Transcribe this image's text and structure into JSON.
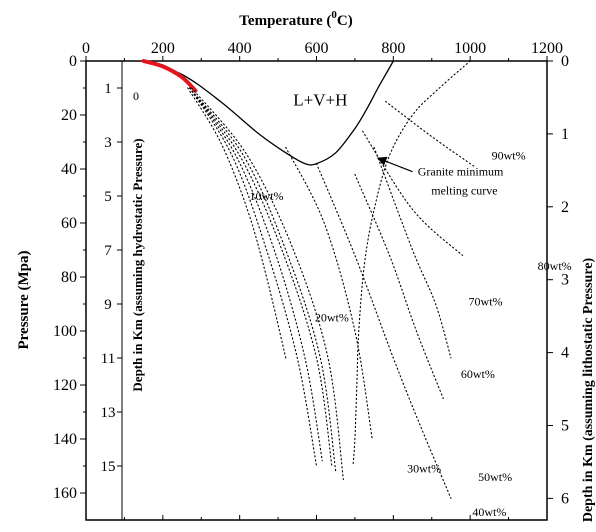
{
  "chart_data": {
    "type": "line",
    "title": "",
    "xlabel": "Temperature (°C)",
    "xlabel_parts": {
      "main": "Temperature (",
      "sup": "0",
      "unit": "C)"
    },
    "ylabel": "Pressure (Mpa)",
    "ylabel_inner": "Depth in Km (assuming hydrostatic Pressure)",
    "ylabel_right": "Depth in Km (assuming lithostatic Pressure)",
    "xlim": [
      0,
      1200
    ],
    "ylim": [
      0,
      170
    ],
    "xticks": [
      0,
      200,
      400,
      600,
      800,
      1000,
      1200
    ],
    "yticks": [
      0,
      20,
      40,
      60,
      80,
      100,
      120,
      140,
      160
    ],
    "hydrostatic_depth_ticks": [
      {
        "label": "1",
        "p": 10
      },
      {
        "label": "3",
        "p": 30
      },
      {
        "label": "5",
        "p": 50
      },
      {
        "label": "7",
        "p": 70
      },
      {
        "label": "9",
        "p": 90
      },
      {
        "label": "11",
        "p": 110
      },
      {
        "label": "13",
        "p": 130
      },
      {
        "label": "15",
        "p": 150
      }
    ],
    "lithostatic_depth_ticks": [
      {
        "label": "0",
        "p": 0
      },
      {
        "label": "1",
        "p": 27
      },
      {
        "label": "2",
        "p": 54
      },
      {
        "label": "3",
        "p": 81
      },
      {
        "label": "4",
        "p": 108
      },
      {
        "label": "5",
        "p": 135
      },
      {
        "label": "6",
        "p": 162
      }
    ],
    "series": [
      {
        "style": "solid",
        "x": [
          150,
          250,
          350,
          450,
          520,
          570,
          600,
          650,
          700,
          730,
          760,
          780,
          800
        ],
        "y": [
          0,
          5,
          15,
          27,
          34,
          38,
          38,
          34,
          25,
          18,
          10,
          5,
          0
        ]
      },
      {
        "style": "red",
        "x": [
          150,
          200,
          250,
          285
        ],
        "y": [
          0,
          2,
          6,
          11
        ]
      },
      {
        "style": "dotted",
        "name": "granite-minimum-melting",
        "x": [
          1000,
          920,
          850,
          790,
          750,
          725,
          710,
          705,
          700,
          695
        ],
        "y": [
          0,
          10,
          20,
          35,
          55,
          75,
          100,
          120,
          140,
          150
        ]
      },
      {
        "style": "dotted",
        "x": [
          265,
          350,
          420,
          470,
          520
        ],
        "y": [
          10,
          30,
          55,
          80,
          110
        ]
      },
      {
        "style": "dotted",
        "x": [
          270,
          380,
          470,
          550,
          600
        ],
        "y": [
          10,
          35,
          70,
          110,
          150
        ]
      },
      {
        "style": "dotted",
        "x": [
          270,
          390,
          490,
          570,
          615
        ],
        "y": [
          10,
          35,
          70,
          110,
          148
        ]
      },
      {
        "style": "dotted",
        "x": [
          270,
          400,
          510,
          600,
          640
        ],
        "y": [
          10,
          35,
          70,
          110,
          150
        ]
      },
      {
        "style": "dotted",
        "x": [
          270,
          410,
          520,
          610,
          650
        ],
        "y": [
          10,
          35,
          70,
          110,
          152
        ]
      },
      {
        "style": "dotted",
        "x": [
          275,
          420,
          540,
          630,
          670
        ],
        "y": [
          10,
          35,
          70,
          110,
          155
        ]
      },
      {
        "style": "dotted",
        "x": [
          520,
          620,
          700,
          745
        ],
        "y": [
          32,
          60,
          100,
          140
        ]
      },
      {
        "style": "dotted",
        "x": [
          600,
          700,
          800,
          870,
          950
        ],
        "y": [
          38,
          72,
          110,
          135,
          162
        ]
      },
      {
        "style": "dotted",
        "x": [
          700,
          790,
          860,
          930
        ],
        "y": [
          42,
          72,
          100,
          125
        ]
      },
      {
        "style": "dotted",
        "x": [
          750,
          850,
          910,
          950
        ],
        "y": [
          32,
          70,
          90,
          110
        ]
      },
      {
        "style": "dotted",
        "x": [
          720,
          850,
          980
        ],
        "y": [
          26,
          55,
          72
        ]
      },
      {
        "style": "dotted",
        "x": [
          780,
          900,
          1010
        ],
        "y": [
          15,
          28,
          39
        ]
      }
    ],
    "annotations": [
      {
        "text": "L+V+H",
        "x": 610,
        "y": 15,
        "cls": "region"
      },
      {
        "text": "0",
        "x": 130,
        "y": 13,
        "cls": "ann"
      },
      {
        "text": "10wt%",
        "x": 470,
        "y": 50,
        "cls": "ann"
      },
      {
        "text": "20wt%",
        "x": 640,
        "y": 95,
        "cls": "ann"
      },
      {
        "text": "30wt%",
        "x": 880,
        "y": 151,
        "cls": "ann"
      },
      {
        "text": "40wt%",
        "x": 1050,
        "y": 167,
        "cls": "ann"
      },
      {
        "text": "50wt%",
        "x": 1065,
        "y": 154,
        "cls": "ann"
      },
      {
        "text": "60wt%",
        "x": 1020,
        "y": 116,
        "cls": "ann"
      },
      {
        "text": "70wt%",
        "x": 1040,
        "y": 89,
        "cls": "ann"
      },
      {
        "text": "80wt%",
        "x": 1220,
        "y": 76,
        "cls": "ann"
      },
      {
        "text": "90wt%",
        "x": 1100,
        "y": 35,
        "cls": "ann"
      },
      {
        "text": "Granite minimum",
        "x": 975,
        "y": 41,
        "cls": "ann"
      },
      {
        "text": "melting curve",
        "x": 985,
        "y": 48,
        "cls": "ann"
      }
    ],
    "arrow": {
      "from": [
        850,
        41
      ],
      "to": [
        760,
        36
      ]
    },
    "grid": false,
    "legend": "none"
  }
}
